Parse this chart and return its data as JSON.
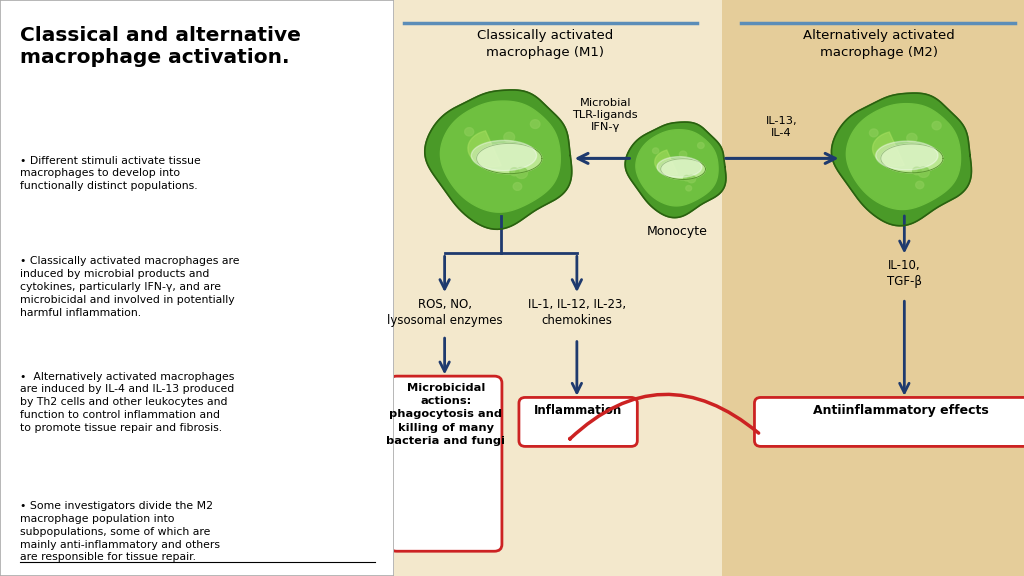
{
  "title_left": "Classical and alternative\nmacrophage activation.",
  "bullet_points": [
    "Different stimuli activate tissue\nmacrophages to develop into\nfunctionally distinct populations.",
    "Classically activated macrophages are\ninduced by microbial products and\ncytokines, particularly IFN-γ, and are\nmicrobicidal and involved in potentially\nharmful inflammation.",
    " Alternatively activated macrophages\nare induced by IL-4 and IL-13 produced\nby Th2 cells and other leukocytes and\nfunction to control inflammation and\nto promote tissue repair and fibrosis.",
    "Some investigators divide the M2\nmacrophage population into\nsubpopulations, some of which are\nmainly anti-inflammatory and others\nare responsible for tissue repair."
  ],
  "bg_left": "#f7f0e0",
  "bg_right": "#e2c98a",
  "header_line_color": "#5b8db8",
  "arrow_color": "#1e3a6e",
  "red_color": "#cc2222",
  "box_border_color": "#cc2222",
  "m1_header": "Classically activated\nmacrophage (M1)",
  "m2_header": "Alternatively activated\nmacrophage (M2)",
  "monocyte_label": "Monocyte",
  "m1_signal": "Microbial\nTLR-ligands\nIFN-γ",
  "m2_signal": "IL-13,\nIL-4",
  "m1_products_left": "ROS, NO,\nlysosomal enzymes",
  "m1_products_right": "IL-1, IL-12, IL-23,\nchemokines",
  "m2_products": "IL-10,\nTGF-β",
  "box1_text": "Microbicidal\nactions:\nphagocytosis and\nkilling of many\nbacteria and fungi",
  "box2_text": "Inflammation",
  "box3_text": "Antiinflammatory effects"
}
